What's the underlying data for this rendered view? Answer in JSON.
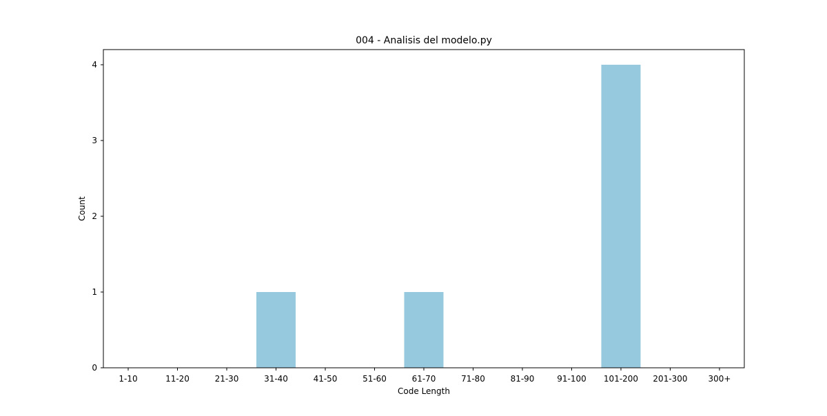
{
  "chart_data": {
    "type": "bar",
    "title": "004 - Analisis del modelo.py",
    "xlabel": "Code Length",
    "ylabel": "Count",
    "categories": [
      "1-10",
      "11-20",
      "21-30",
      "31-40",
      "41-50",
      "51-60",
      "61-70",
      "71-80",
      "81-90",
      "91-100",
      "101-200",
      "201-300",
      "300+"
    ],
    "values": [
      0,
      0,
      0,
      1,
      0,
      0,
      1,
      0,
      0,
      0,
      4,
      0,
      0
    ],
    "ylim": [
      0,
      4.2
    ],
    "yticks": [
      0,
      1,
      2,
      3,
      4
    ],
    "grid": false,
    "bar_color": "#96c9de"
  }
}
